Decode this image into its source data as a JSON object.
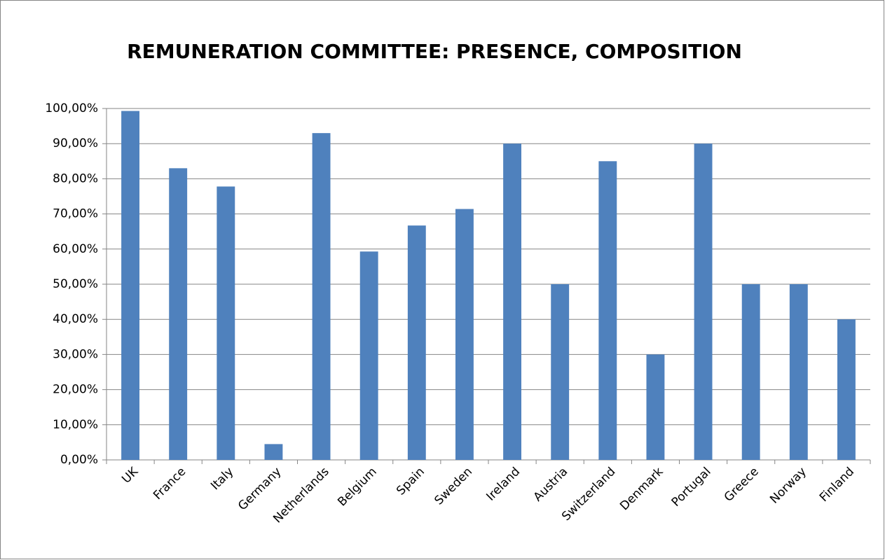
{
  "chart_data": {
    "type": "bar",
    "title": "REMUNERATION COMMITTEE: PRESENCE, COMPOSITION",
    "categories": [
      "UK",
      "France",
      "Italy",
      "Germany",
      "Netherlands",
      "Belgium",
      "Spain",
      "Sweden",
      "Ireland",
      "Austria",
      "Switzerland",
      "Denmark",
      "Portugal",
      "Greece",
      "Norway",
      "Finland"
    ],
    "values": [
      99.3,
      83,
      77.8,
      4.5,
      93,
      59.3,
      66.7,
      71.4,
      90,
      50,
      85,
      30,
      90,
      50,
      50,
      40
    ],
    "color": "#4f81bd",
    "ylim": [
      0,
      100
    ],
    "yticks": [
      {
        "value": 0,
        "label": "0,00%"
      },
      {
        "value": 10,
        "label": "10,00%"
      },
      {
        "value": 20,
        "label": "20,00%"
      },
      {
        "value": 30,
        "label": "30,00%"
      },
      {
        "value": 40,
        "label": "40,00%"
      },
      {
        "value": 50,
        "label": "50,00%"
      },
      {
        "value": 60,
        "label": "60,00%"
      },
      {
        "value": 70,
        "label": "70,00%"
      },
      {
        "value": 80,
        "label": "80,00%"
      },
      {
        "value": 90,
        "label": "90,00%"
      },
      {
        "value": 100,
        "label": "100,00%"
      }
    ],
    "grid": true
  }
}
